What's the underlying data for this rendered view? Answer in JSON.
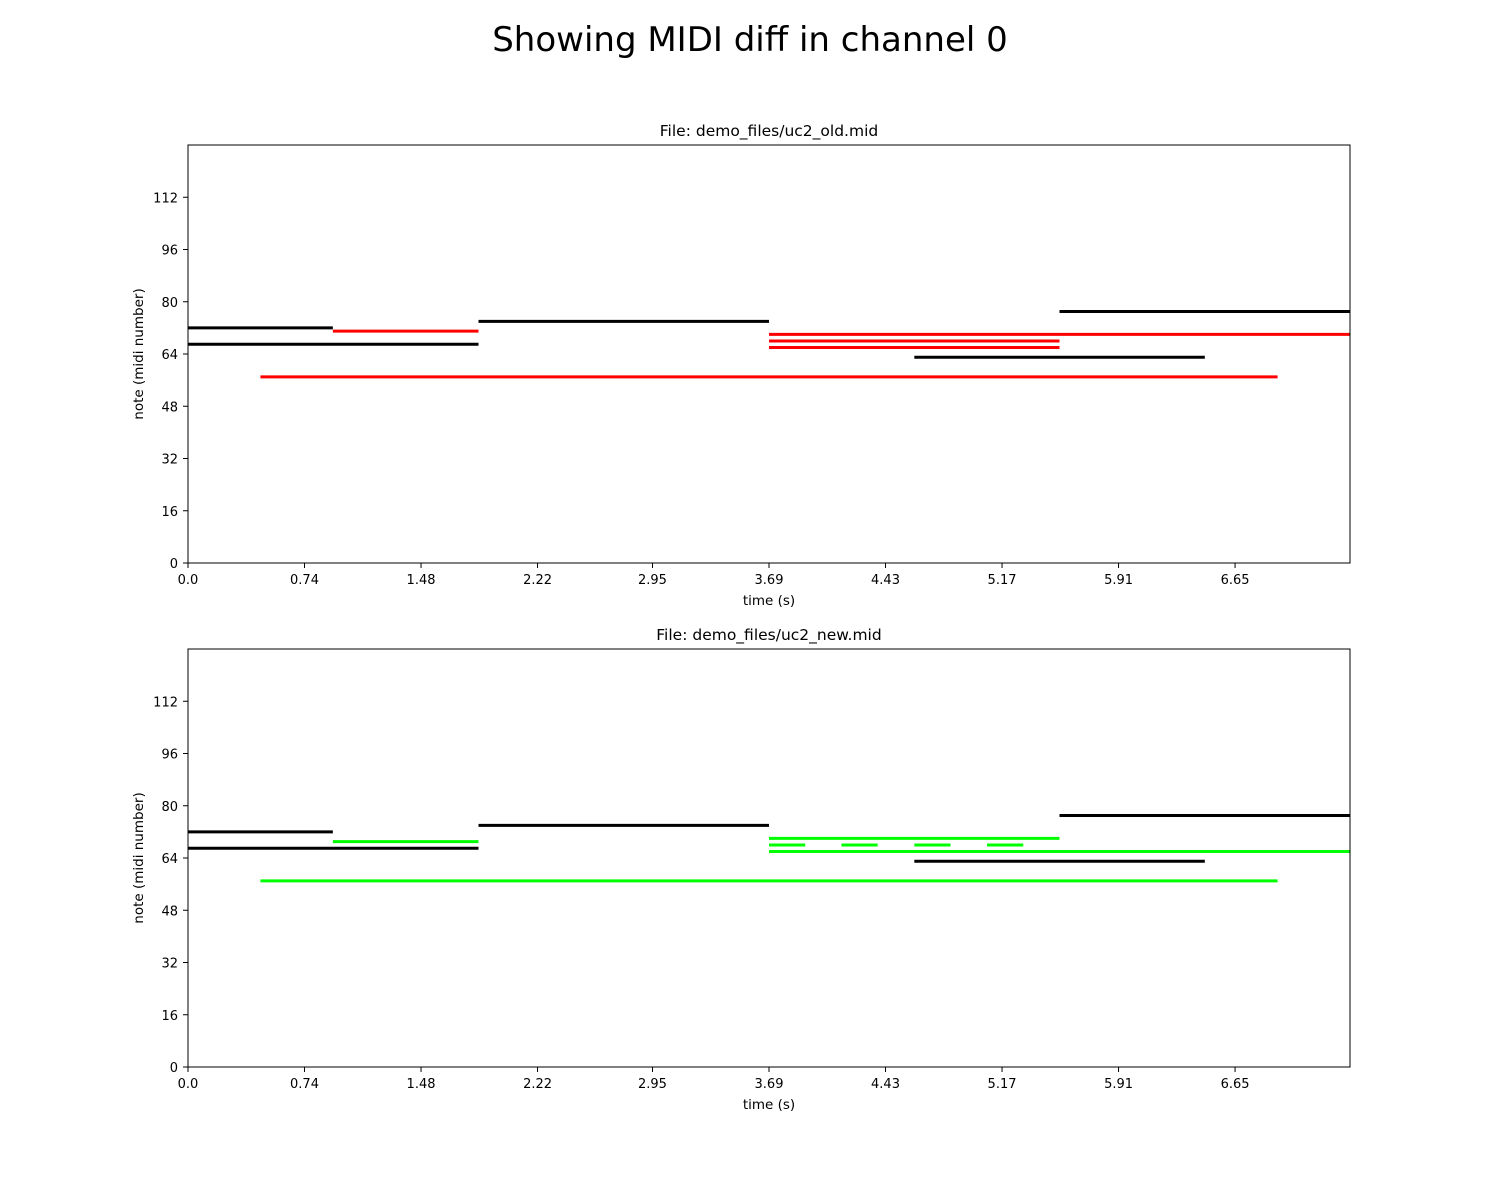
{
  "suptitle": "Showing MIDI diff in channel 0",
  "colors": {
    "unchanged": "#000000",
    "removed": "#ff0000",
    "added": "#00ff00",
    "background": "#ffffff"
  },
  "chart_data": [
    {
      "type": "piano-roll",
      "title": "File: demo_files/uc2_old.mid",
      "xlabel": "time (s)",
      "ylabel": "note (midi number)",
      "xlim": [
        0.0,
        7.38
      ],
      "ylim": [
        0,
        128
      ],
      "xticks": [
        0.0,
        0.74,
        1.48,
        2.22,
        2.95,
        3.69,
        4.43,
        5.17,
        5.91,
        6.65
      ],
      "xtick_labels": [
        "0.0",
        "0.74",
        "1.48",
        "2.22",
        "2.95",
        "3.69",
        "4.43",
        "5.17",
        "5.91",
        "6.65"
      ],
      "yticks": [
        0,
        16,
        32,
        48,
        64,
        80,
        96,
        112
      ],
      "ytick_labels": [
        "0",
        "16",
        "32",
        "48",
        "64",
        "80",
        "96",
        "112"
      ],
      "grid": false,
      "series": [
        {
          "status": "unchanged",
          "color": "#000000",
          "notes": [
            {
              "start": 0.0,
              "end": 0.92,
              "pitch": 72
            },
            {
              "start": 0.0,
              "end": 1.845,
              "pitch": 67
            },
            {
              "start": 1.845,
              "end": 3.69,
              "pitch": 74
            },
            {
              "start": 4.613,
              "end": 6.458,
              "pitch": 63
            },
            {
              "start": 5.535,
              "end": 7.38,
              "pitch": 77
            }
          ]
        },
        {
          "status": "removed",
          "color": "#ff0000",
          "notes": [
            {
              "start": 0.92,
              "end": 1.845,
              "pitch": 71
            },
            {
              "start": 0.46,
              "end": 6.92,
              "pitch": 57
            },
            {
              "start": 3.69,
              "end": 7.38,
              "pitch": 70
            },
            {
              "start": 3.69,
              "end": 5.535,
              "pitch": 68
            },
            {
              "start": 3.69,
              "end": 5.535,
              "pitch": 66
            }
          ]
        }
      ]
    },
    {
      "type": "piano-roll",
      "title": "File: demo_files/uc2_new.mid",
      "xlabel": "time (s)",
      "ylabel": "note (midi number)",
      "xlim": [
        0.0,
        7.38
      ],
      "ylim": [
        0,
        128
      ],
      "xticks": [
        0.0,
        0.74,
        1.48,
        2.22,
        2.95,
        3.69,
        4.43,
        5.17,
        5.91,
        6.65
      ],
      "xtick_labels": [
        "0.0",
        "0.74",
        "1.48",
        "2.22",
        "2.95",
        "3.69",
        "4.43",
        "5.17",
        "5.91",
        "6.65"
      ],
      "yticks": [
        0,
        16,
        32,
        48,
        64,
        80,
        96,
        112
      ],
      "ytick_labels": [
        "0",
        "16",
        "32",
        "48",
        "64",
        "80",
        "96",
        "112"
      ],
      "grid": false,
      "series": [
        {
          "status": "unchanged",
          "color": "#000000",
          "notes": [
            {
              "start": 0.0,
              "end": 0.92,
              "pitch": 72
            },
            {
              "start": 0.0,
              "end": 1.845,
              "pitch": 67
            },
            {
              "start": 1.845,
              "end": 3.69,
              "pitch": 74
            },
            {
              "start": 4.613,
              "end": 6.458,
              "pitch": 63
            },
            {
              "start": 5.535,
              "end": 7.38,
              "pitch": 77
            }
          ]
        },
        {
          "status": "added",
          "color": "#00ff00",
          "notes": [
            {
              "start": 0.92,
              "end": 1.845,
              "pitch": 69
            },
            {
              "start": 0.46,
              "end": 6.92,
              "pitch": 57
            },
            {
              "start": 3.69,
              "end": 5.535,
              "pitch": 70
            },
            {
              "start": 3.69,
              "end": 3.92,
              "pitch": 68
            },
            {
              "start": 4.15,
              "end": 4.38,
              "pitch": 68
            },
            {
              "start": 4.613,
              "end": 4.843,
              "pitch": 68
            },
            {
              "start": 5.075,
              "end": 5.305,
              "pitch": 68
            },
            {
              "start": 3.69,
              "end": 7.38,
              "pitch": 66
            }
          ]
        }
      ]
    }
  ]
}
